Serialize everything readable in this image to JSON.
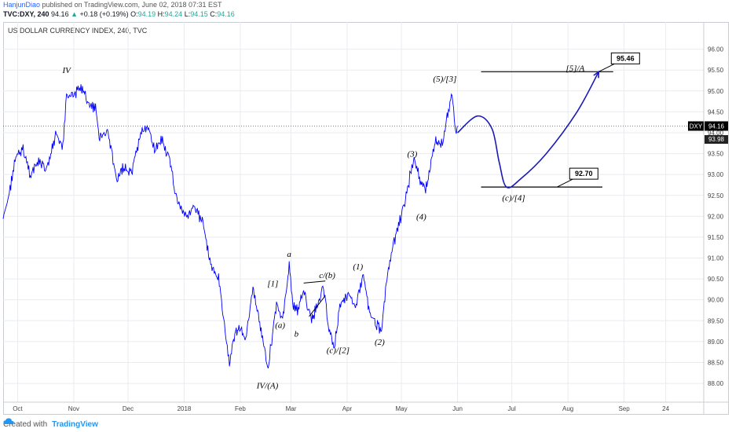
{
  "header": {
    "author": "HanjunDiao",
    "published_text": " published on TradingView.com, June 02, 2018 07:31 EST",
    "symbol": "TVC:DXY, 240",
    "last": "94.16",
    "change_arrow": "▲",
    "change": "+0.18 (+0.19%)",
    "o_label": "O:",
    "o_value": "94.19",
    "h_label": "H:",
    "h_value": "94.24",
    "l_label": "L:",
    "l_value": "94.15",
    "c_label": "C:",
    "c_value": "94.16"
  },
  "footer": {
    "created_with": "Created with",
    "brand": "TradingView"
  },
  "colors": {
    "series": "#0000ff",
    "projection": "#1a1ab8",
    "grid": "#e9ebef",
    "dxy_tag_bg": "#000000"
  },
  "chart_data": {
    "type": "line",
    "title": "US DOLLAR CURRENCY INDEX, 240, TVC",
    "x_tick_labels": [
      "Oct",
      "Nov",
      "Dec",
      "2018",
      "Feb",
      "Mar",
      "Apr",
      "May",
      "Jun",
      "Jul",
      "Aug",
      "Sep",
      "24"
    ],
    "x_ticks_date": [
      "2017-10-01",
      "2017-11-01",
      "2017-12-01",
      "2018-01-01",
      "2018-02-01",
      "2018-03-01",
      "2018-04-01",
      "2018-05-01",
      "2018-06-01",
      "2018-07-01",
      "2018-08-01",
      "2018-09-01",
      "2018-09-24"
    ],
    "xlim": [
      "2017-09-23",
      "2018-10-15"
    ],
    "y_tick_labels": [
      "96.00",
      "95.50",
      "95.00",
      "94.50",
      "94.00",
      "93.50",
      "93.00",
      "92.50",
      "92.00",
      "91.50",
      "91.00",
      "90.50",
      "90.00",
      "89.50",
      "89.00",
      "88.50",
      "88.00"
    ],
    "ylim": [
      87.55,
      96.35
    ],
    "grid": true,
    "series": [
      {
        "values": [
          [
            "2017-09-23",
            91.9
          ],
          [
            "2017-09-26",
            92.5
          ],
          [
            "2017-09-30",
            93.4
          ],
          [
            "2017-10-04",
            93.6
          ],
          [
            "2017-10-08",
            93.0
          ],
          [
            "2017-10-13",
            93.3
          ],
          [
            "2017-10-17",
            93.1
          ],
          [
            "2017-10-22",
            93.9
          ],
          [
            "2017-10-26",
            93.7
          ],
          [
            "2017-10-28",
            94.9
          ],
          [
            "2017-11-01",
            94.9
          ],
          [
            "2017-11-05",
            95.1
          ],
          [
            "2017-11-09",
            94.7
          ],
          [
            "2017-11-13",
            94.6
          ],
          [
            "2017-11-15",
            93.9
          ],
          [
            "2017-11-20",
            94.0
          ],
          [
            "2017-11-25",
            92.8
          ],
          [
            "2017-11-28",
            93.2
          ],
          [
            "2017-12-03",
            93.0
          ],
          [
            "2017-12-08",
            94.0
          ],
          [
            "2017-12-12",
            94.1
          ],
          [
            "2017-12-16",
            93.6
          ],
          [
            "2017-12-20",
            93.8
          ],
          [
            "2017-12-24",
            93.3
          ],
          [
            "2017-12-28",
            92.4
          ],
          [
            "2018-01-02",
            92.0
          ],
          [
            "2018-01-06",
            92.2
          ],
          [
            "2018-01-11",
            91.9
          ],
          [
            "2018-01-16",
            90.8
          ],
          [
            "2018-01-20",
            90.5
          ],
          [
            "2018-01-24",
            89.1
          ],
          [
            "2018-01-26",
            88.5
          ],
          [
            "2018-01-29",
            89.2
          ],
          [
            "2018-02-01",
            89.3
          ],
          [
            "2018-02-04",
            89.1
          ],
          [
            "2018-02-08",
            90.3
          ],
          [
            "2018-02-11",
            89.6
          ],
          [
            "2018-02-14",
            88.9
          ],
          [
            "2018-02-16",
            88.3
          ],
          [
            "2018-02-18",
            88.9
          ],
          [
            "2018-02-21",
            89.9
          ],
          [
            "2018-02-24",
            89.5
          ],
          [
            "2018-02-27",
            90.4
          ],
          [
            "2018-02-28",
            90.8
          ],
          [
            "2018-03-02",
            89.9
          ],
          [
            "2018-03-05",
            89.7
          ],
          [
            "2018-03-08",
            90.3
          ],
          [
            "2018-03-12",
            89.5
          ],
          [
            "2018-03-15",
            89.8
          ],
          [
            "2018-03-19",
            90.3
          ],
          [
            "2018-03-22",
            89.3
          ],
          [
            "2018-03-25",
            88.9
          ],
          [
            "2018-03-28",
            89.9
          ],
          [
            "2018-04-02",
            90.1
          ],
          [
            "2018-04-06",
            89.9
          ],
          [
            "2018-04-10",
            90.6
          ],
          [
            "2018-04-13",
            89.8
          ],
          [
            "2018-04-17",
            89.4
          ],
          [
            "2018-04-20",
            89.3
          ],
          [
            "2018-04-23",
            90.5
          ],
          [
            "2018-04-27",
            91.4
          ],
          [
            "2018-05-01",
            92.0
          ],
          [
            "2018-05-04",
            92.6
          ],
          [
            "2018-05-08",
            93.4
          ],
          [
            "2018-05-11",
            92.9
          ],
          [
            "2018-05-14",
            92.6
          ],
          [
            "2018-05-17",
            93.2
          ],
          [
            "2018-05-20",
            93.8
          ],
          [
            "2018-05-24",
            93.7
          ],
          [
            "2018-05-27",
            94.6
          ],
          [
            "2018-05-29",
            94.9
          ],
          [
            "2018-05-31",
            94.0
          ],
          [
            "2018-06-01",
            94.16
          ]
        ]
      }
    ],
    "projection": [
      [
        "2018-06-01",
        94.0
      ],
      [
        "2018-06-12",
        94.4
      ],
      [
        "2018-06-20",
        94.1
      ],
      [
        "2018-06-24",
        93.3
      ],
      [
        "2018-06-28",
        92.7
      ],
      [
        "2018-07-06",
        92.9
      ],
      [
        "2018-07-20",
        93.5
      ],
      [
        "2018-08-06",
        94.5
      ],
      [
        "2018-08-18",
        95.46
      ]
    ],
    "horizontal_levels": [
      {
        "y": 95.46,
        "from": "2018-06-14",
        "to": "2018-08-26"
      },
      {
        "y": 92.7,
        "from": "2018-06-14",
        "to": "2018-08-20"
      }
    ],
    "callouts": [
      {
        "label": "95.46",
        "x": "2018-08-18",
        "y": 95.46
      },
      {
        "label": "92.70",
        "x": "2018-07-26",
        "y": 92.7
      }
    ],
    "price_tags": {
      "symbol": "DXY",
      "last": "94.16",
      "prev": "93.98"
    },
    "annotations": [
      {
        "text": "IV",
        "x": "2017-10-28",
        "y": 95.5
      },
      {
        "text": "IV/(A)",
        "x": "2018-02-16",
        "y": 87.95
      },
      {
        "text": "a",
        "x": "2018-02-28",
        "y": 91.1
      },
      {
        "text": "[1]",
        "x": "2018-02-19",
        "y": 90.4
      },
      {
        "text": "(a)",
        "x": "2018-02-23",
        "y": 89.4
      },
      {
        "text": "b",
        "x": "2018-03-04",
        "y": 89.2
      },
      {
        "text": "c/(b)",
        "x": "2018-03-21",
        "y": 90.6
      },
      {
        "text": "(c)/[2]",
        "x": "2018-03-27",
        "y": 88.8
      },
      {
        "text": "(1)",
        "x": "2018-04-07",
        "y": 90.8
      },
      {
        "text": "(2)",
        "x": "2018-04-19",
        "y": 89.0
      },
      {
        "text": "(3)",
        "x": "2018-05-07",
        "y": 93.5
      },
      {
        "text": "(4)",
        "x": "2018-05-12",
        "y": 92.0
      },
      {
        "text": "(5)/[3]",
        "x": "2018-05-25",
        "y": 95.3
      },
      {
        "text": "[5]/A",
        "x": "2018-08-05",
        "y": 95.55
      },
      {
        "text": "(c)/[4]",
        "x": "2018-07-02",
        "y": 92.45
      }
    ],
    "trendline": [
      [
        "2018-03-08",
        90.4
      ],
      [
        "2018-03-20",
        90.45
      ]
    ],
    "wedge_line": [
      [
        "2018-03-11",
        89.6
      ],
      [
        "2018-03-20",
        90.1
      ]
    ]
  }
}
